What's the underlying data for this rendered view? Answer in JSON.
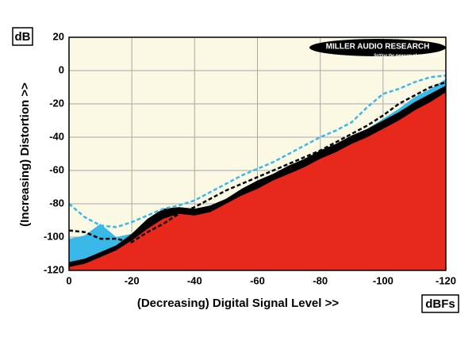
{
  "chart_data": {
    "type": "area",
    "y_label": "(Increasing) Distortion >>",
    "x_label": "(Decreasing) Digital Signal Level >>",
    "y_unit": "dB",
    "x_unit": "dBFs",
    "logo": "MILLER AUDIO RESEARCH",
    "logo_tagline": "Setting the measure of sound quality",
    "xlim": [
      0,
      -120
    ],
    "xticks": [
      0,
      -20,
      -40,
      -60,
      -80,
      -100,
      -120
    ],
    "ylim": [
      -120,
      20
    ],
    "yticks": [
      20,
      0,
      -20,
      -40,
      -60,
      -80,
      -100,
      -120
    ],
    "grid": true,
    "x": [
      0,
      -5,
      -10,
      -15,
      -20,
      -25,
      -30,
      -35,
      -40,
      -45,
      -50,
      -55,
      -60,
      -65,
      -70,
      -75,
      -80,
      -85,
      -90,
      -95,
      -100,
      -105,
      -110,
      -115,
      -120
    ],
    "series": [
      {
        "style": "area",
        "color": "#3ab8e8",
        "values": [
          -101,
          -99,
          -92,
          -100,
          -98,
          -89,
          -83,
          -82,
          -83,
          -81,
          -77,
          -71,
          -66,
          -62,
          -57,
          -53,
          -48,
          -44,
          -39,
          -35,
          -29,
          -23,
          -16,
          -11,
          -5
        ]
      },
      {
        "style": "area",
        "color": "#000000",
        "values": [
          -115,
          -113,
          -109,
          -105,
          -98,
          -89,
          -83,
          -82,
          -83,
          -81,
          -77,
          -71,
          -66,
          -62,
          -57,
          -53,
          -48,
          -44,
          -39,
          -35,
          -30,
          -25,
          -19,
          -14,
          -9
        ]
      },
      {
        "style": "area",
        "color": "#e8281a",
        "values": [
          -118,
          -116,
          -112,
          -108,
          -102,
          -95,
          -89,
          -86,
          -87,
          -85,
          -80,
          -75,
          -71,
          -66,
          -62,
          -58,
          -53,
          -49,
          -44,
          -40,
          -35,
          -30,
          -24,
          -19,
          -13
        ]
      },
      {
        "style": "dashed",
        "color": "#000000",
        "values": [
          -96,
          -97,
          -101,
          -101,
          -103,
          -97,
          -92,
          -86,
          -82,
          -77,
          -72,
          -68,
          -64,
          -60,
          -56,
          -52,
          -48,
          -43,
          -38,
          -33,
          -27,
          -20,
          -15,
          -10,
          -7
        ]
      },
      {
        "style": "dashed",
        "color": "#3ab8e8",
        "values": [
          -80,
          -88,
          -93,
          -94,
          -91,
          -87,
          -83,
          -81,
          -78,
          -73,
          -68,
          -63,
          -59,
          -55,
          -50,
          -45,
          -40,
          -36,
          -31,
          -22,
          -14,
          -11,
          -7,
          -4,
          -3
        ]
      }
    ]
  }
}
